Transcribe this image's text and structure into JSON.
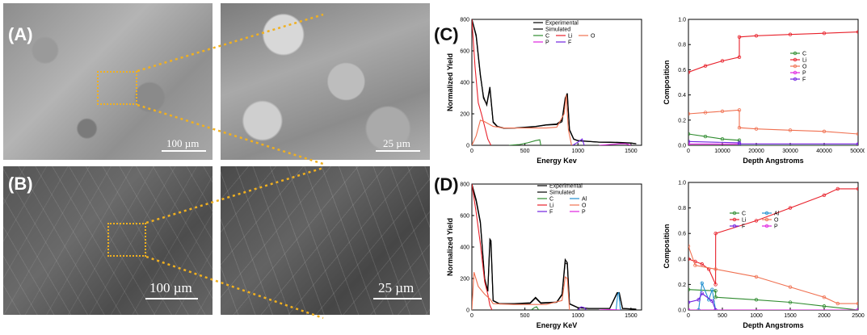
{
  "panels": {
    "a": {
      "label": "(A)",
      "scale_left": "100 µm",
      "scale_right": "25 µm"
    },
    "b": {
      "label": "(B)",
      "scale_left": "100 µm",
      "scale_right": "25 µm"
    },
    "c": {
      "label": "(C)"
    },
    "d": {
      "label": "(D)"
    }
  },
  "colors": {
    "zoom_box": "#f0b020",
    "experimental": "#333333",
    "simulated": "#777777",
    "C": "#2e8b2e",
    "Li": "#e8202a",
    "O": "#f07050",
    "P": "#e020e0",
    "F": "#7020e0",
    "Al": "#2090d0"
  },
  "chart_data": [
    {
      "type": "line",
      "panel": "C-spectrum",
      "xlabel": "Energy Kev",
      "ylabel": "Normalized Yield",
      "xlim": [
        0,
        1600
      ],
      "ylim": [
        0,
        800
      ],
      "xticks": [
        "0",
        "500",
        "1000",
        "1500"
      ],
      "yticks": [
        "0",
        "200",
        "400",
        "600",
        "800"
      ],
      "legend": [
        "Experimental",
        "Simulated",
        "C",
        "Li",
        "O",
        "P",
        "F"
      ],
      "series": [
        {
          "name": "Experimental",
          "x": [
            0,
            40,
            80,
            110,
            140,
            170,
            200,
            240,
            300,
            400,
            500,
            600,
            700,
            800,
            850,
            880,
            900,
            920,
            960,
            1000,
            1100,
            1200,
            1300,
            1400,
            1500,
            1550
          ],
          "y": [
            800,
            700,
            450,
            300,
            260,
            370,
            150,
            120,
            110,
            110,
            115,
            120,
            130,
            135,
            160,
            300,
            330,
            100,
            40,
            30,
            25,
            20,
            20,
            18,
            15,
            10
          ]
        },
        {
          "name": "Simulated",
          "x": [
            0,
            40,
            80,
            110,
            140,
            170,
            200,
            240,
            300,
            400,
            500,
            600,
            700,
            800,
            850,
            880,
            900,
            920,
            960,
            1000,
            1100,
            1200,
            1300,
            1400,
            1500,
            1550
          ],
          "y": [
            800,
            690,
            440,
            310,
            255,
            360,
            145,
            118,
            108,
            110,
            112,
            118,
            128,
            132,
            150,
            290,
            320,
            95,
            38,
            28,
            24,
            20,
            18,
            16,
            14,
            10
          ]
        },
        {
          "name": "C",
          "x": [
            350,
            450,
            520,
            600,
            640,
            650
          ],
          "y": [
            0,
            5,
            15,
            30,
            35,
            0
          ]
        },
        {
          "name": "Li",
          "x": [
            0,
            30,
            60,
            90,
            120,
            150,
            180
          ],
          "y": [
            800,
            500,
            270,
            200,
            120,
            40,
            0
          ]
        },
        {
          "name": "O",
          "x": [
            0,
            40,
            80,
            120,
            200,
            300,
            500,
            700,
            800,
            870,
            890,
            910,
            940
          ],
          "y": [
            0,
            60,
            160,
            150,
            120,
            110,
            110,
            110,
            115,
            200,
            320,
            100,
            0
          ]
        },
        {
          "name": "P",
          "x": [
            1200,
            1300,
            1400,
            1450,
            1500
          ],
          "y": [
            0,
            5,
            10,
            10,
            0
          ]
        },
        {
          "name": "F",
          "x": [
            950,
            1000,
            1040,
            1060
          ],
          "y": [
            0,
            20,
            40,
            0
          ]
        }
      ]
    },
    {
      "type": "line",
      "panel": "C-depth",
      "xlabel": "Depth Angstroms",
      "ylabel": "Composition",
      "xlim": [
        0,
        50000
      ],
      "ylim": [
        0,
        1.0
      ],
      "xticks": [
        "0",
        "10000",
        "20000",
        "30000",
        "40000",
        "50000"
      ],
      "yticks": [
        "0.0",
        "0.2",
        "0.4",
        "0.6",
        "0.8",
        "1.0"
      ],
      "legend": [
        "C",
        "Li",
        "O",
        "P",
        "F"
      ],
      "series": [
        {
          "name": "C",
          "x": [
            0,
            5000,
            10000,
            15000,
            15001,
            50000
          ],
          "y": [
            0.09,
            0.07,
            0.05,
            0.04,
            0.0,
            0.0
          ]
        },
        {
          "name": "Li",
          "x": [
            0,
            5000,
            10000,
            15000,
            15001,
            20000,
            30000,
            40000,
            50000
          ],
          "y": [
            0.58,
            0.63,
            0.67,
            0.7,
            0.86,
            0.87,
            0.88,
            0.89,
            0.9
          ]
        },
        {
          "name": "O",
          "x": [
            0,
            5000,
            10000,
            15000,
            15001,
            20000,
            30000,
            40000,
            50000
          ],
          "y": [
            0.25,
            0.26,
            0.27,
            0.28,
            0.14,
            0.13,
            0.12,
            0.11,
            0.09
          ]
        },
        {
          "name": "P",
          "x": [
            0,
            50000
          ],
          "y": [
            0.01,
            0.01
          ]
        },
        {
          "name": "F",
          "x": [
            0,
            15000,
            15001,
            50000
          ],
          "y": [
            0.03,
            0.02,
            0.01,
            0.01
          ]
        }
      ]
    },
    {
      "type": "line",
      "panel": "D-spectrum",
      "xlabel": "Energy KeV",
      "ylabel": "Normalized Yield",
      "xlim": [
        0,
        1600
      ],
      "ylim": [
        0,
        800
      ],
      "xticks": [
        "0",
        "500",
        "1000",
        "1500"
      ],
      "yticks": [
        "0",
        "200",
        "400",
        "600",
        "800"
      ],
      "legend": [
        "Experimental",
        "Simulated",
        "C",
        "Al",
        "Li",
        "O",
        "F",
        "P"
      ],
      "series": [
        {
          "name": "Experimental",
          "x": [
            0,
            40,
            80,
            120,
            150,
            170,
            180,
            200,
            260,
            400,
            550,
            600,
            650,
            800,
            850,
            880,
            900,
            920,
            1000,
            1100,
            1300,
            1370,
            1390,
            1420,
            1550
          ],
          "y": [
            800,
            700,
            560,
            200,
            120,
            450,
            440,
            60,
            40,
            40,
            45,
            80,
            45,
            50,
            100,
            320,
            300,
            40,
            15,
            10,
            10,
            110,
            110,
            10,
            5
          ]
        },
        {
          "name": "Simulated",
          "x": [
            0,
            40,
            80,
            120,
            150,
            170,
            180,
            200,
            260,
            400,
            550,
            600,
            650,
            800,
            850,
            880,
            900,
            920,
            1000,
            1100,
            1300,
            1370,
            1390,
            1420,
            1550
          ],
          "y": [
            790,
            690,
            550,
            195,
            118,
            430,
            420,
            58,
            38,
            38,
            42,
            75,
            42,
            48,
            95,
            300,
            290,
            38,
            14,
            10,
            10,
            105,
            105,
            10,
            5
          ]
        },
        {
          "name": "C",
          "x": [
            560,
            590,
            610,
            630
          ],
          "y": [
            0,
            15,
            20,
            0
          ]
        },
        {
          "name": "Al",
          "x": [
            1360,
            1375,
            1385,
            1400
          ],
          "y": [
            0,
            100,
            110,
            0
          ]
        },
        {
          "name": "Li",
          "x": [
            0,
            40,
            80,
            120,
            150,
            170,
            190
          ],
          "y": [
            800,
            620,
            420,
            180,
            100,
            30,
            0
          ]
        },
        {
          "name": "O",
          "x": [
            0,
            20,
            60,
            120,
            170,
            200,
            400,
            700,
            850,
            880,
            900,
            920
          ],
          "y": [
            0,
            240,
            150,
            100,
            70,
            40,
            35,
            35,
            60,
            210,
            200,
            0
          ]
        },
        {
          "name": "F",
          "x": [
            1000,
            1030,
            1060,
            1080
          ],
          "y": [
            0,
            20,
            15,
            0
          ]
        },
        {
          "name": "P",
          "x": [
            1200,
            1300,
            1400
          ],
          "y": [
            0,
            2,
            0
          ]
        }
      ]
    },
    {
      "type": "line",
      "panel": "D-depth",
      "xlabel": "Depth Angstroms",
      "ylabel": "Composition",
      "xlim": [
        0,
        2500
      ],
      "ylim": [
        0,
        1.0
      ],
      "xticks": [
        "0",
        "500",
        "1000",
        "1500",
        "2000",
        "2500"
      ],
      "yticks": [
        "0.0",
        "0.2",
        "0.4",
        "0.6",
        "0.8",
        "1.0"
      ],
      "legend": [
        "C",
        "Al",
        "Li",
        "O",
        "F",
        "P"
      ],
      "series": [
        {
          "name": "C",
          "x": [
            0,
            400,
            401,
            1000,
            1500,
            2000,
            2500
          ],
          "y": [
            0.16,
            0.15,
            0.1,
            0.08,
            0.06,
            0.03,
            0.0
          ]
        },
        {
          "name": "Al",
          "x": [
            0,
            150,
            200,
            300,
            350,
            400,
            2500
          ],
          "y": [
            0.0,
            0.0,
            0.21,
            0.08,
            0.16,
            0.0,
            0.0
          ]
        },
        {
          "name": "Li",
          "x": [
            0,
            100,
            200,
            300,
            400,
            401,
            1000,
            1500,
            2000,
            2200,
            2500
          ],
          "y": [
            0.4,
            0.38,
            0.36,
            0.32,
            0.2,
            0.6,
            0.7,
            0.8,
            0.9,
            0.95,
            0.95
          ]
        },
        {
          "name": "O",
          "x": [
            0,
            100,
            400,
            1000,
            1500,
            2000,
            2200,
            2500
          ],
          "y": [
            0.5,
            0.35,
            0.32,
            0.26,
            0.18,
            0.1,
            0.05,
            0.05
          ]
        },
        {
          "name": "F",
          "x": [
            0,
            150,
            200,
            350,
            400,
            2500
          ],
          "y": [
            0.06,
            0.08,
            0.13,
            0.07,
            0.0,
            0.0
          ]
        },
        {
          "name": "P",
          "x": [
            0,
            2500
          ],
          "y": [
            0.0,
            0.0
          ]
        }
      ]
    }
  ]
}
